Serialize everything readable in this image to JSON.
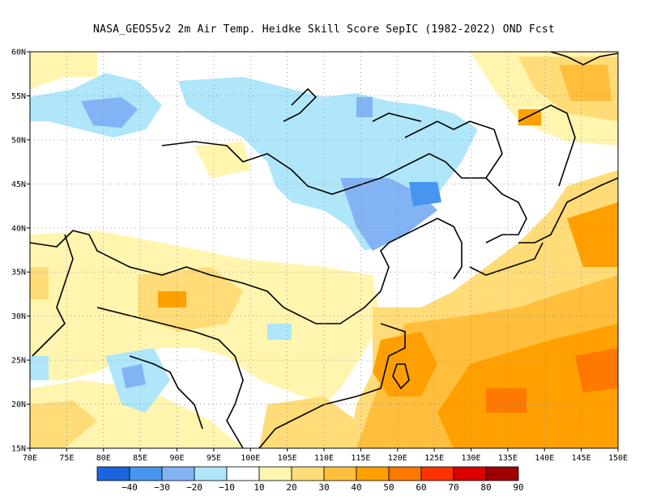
{
  "title": "NASA_GEOS5v2  2m Air Temp. Heidke Skill Score SepIC (1982-2022) OND Fcst",
  "map": {
    "lon_range": [
      70,
      150
    ],
    "lat_range": [
      15,
      60
    ],
    "lon_ticks": [
      "70E",
      "75E",
      "80E",
      "85E",
      "90E",
      "95E",
      "100E",
      "105E",
      "110E",
      "115E",
      "120E",
      "125E",
      "130E",
      "135E",
      "140E",
      "145E",
      "150E"
    ],
    "lat_ticks": [
      "15N",
      "20N",
      "25N",
      "30N",
      "35N",
      "40N",
      "45N",
      "50N",
      "55N",
      "60N"
    ],
    "gridlines": "dotted"
  },
  "legend": {
    "labels": [
      "-40",
      "-30",
      "-20",
      "-10",
      "10",
      "20",
      "30",
      "40",
      "50",
      "60",
      "70",
      "80",
      "90"
    ],
    "colors": [
      "#1e64e0",
      "#4696f0",
      "#82b4f5",
      "#afe6fa",
      "#ffffff",
      "#fff5af",
      "#ffdc78",
      "#ffbe3c",
      "#ffa000",
      "#ff7800",
      "#ff3200",
      "#dc0000",
      "#a00000"
    ]
  }
}
